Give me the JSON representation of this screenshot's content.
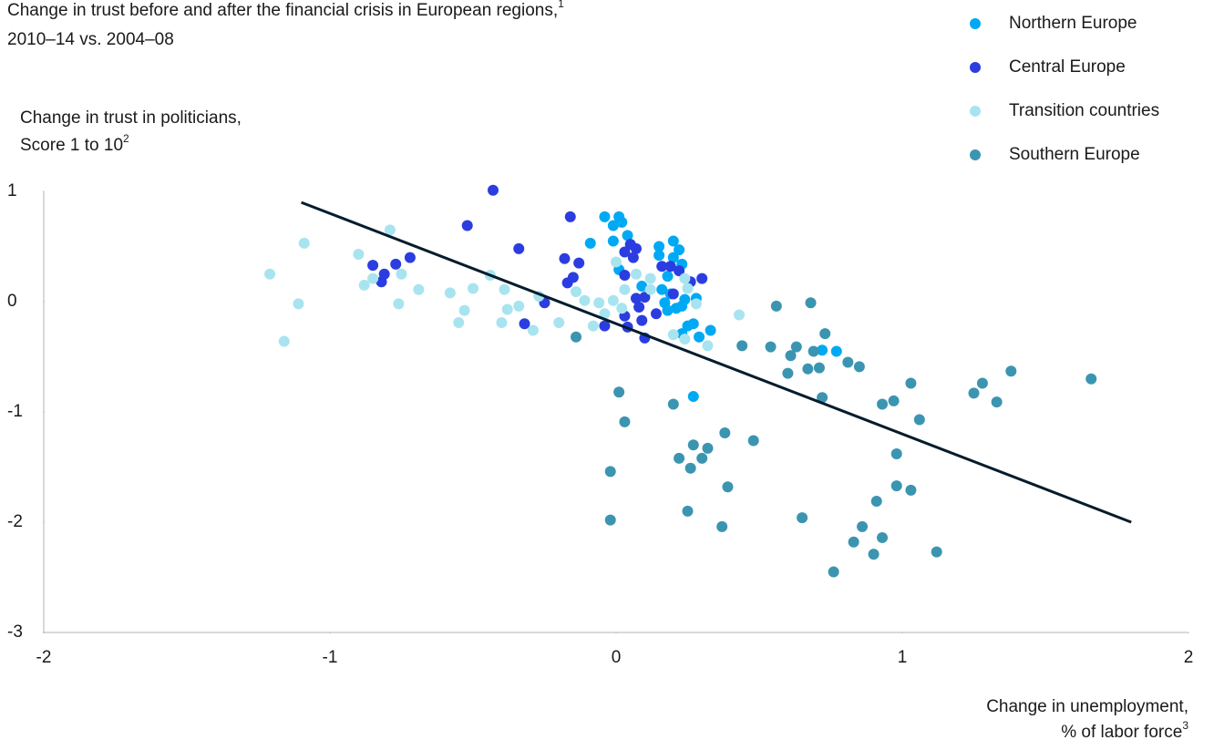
{
  "chart_data": {
    "type": "scatter",
    "title": "Change in trust before and after the financial crisis in European regions,",
    "title_note": "1",
    "subtitle": "2010–14 vs. 2004–08",
    "y_label": [
      "Change in trust in politicians,",
      "Score 1 to 10"
    ],
    "y_label_note": "2",
    "x_label": [
      "Change in unemployment,",
      "% of labor force"
    ],
    "x_label_note": "3",
    "xlim": [
      -2,
      2
    ],
    "xticks": [
      -2,
      -1,
      0,
      1,
      2
    ],
    "ylim": [
      -3,
      1
    ],
    "yticks": [
      -3,
      -2,
      -1,
      0,
      1
    ],
    "legend": "top-right",
    "trend_line": {
      "color": "#051c2c",
      "x": [
        -1.1,
        1.8
      ],
      "y": [
        0.9,
        -2.0
      ]
    },
    "series": [
      {
        "name": "Northern Europe",
        "color": "#00a9f4",
        "x": [
          -0.04,
          0.01,
          0.02,
          -0.01,
          0.04,
          -0.01,
          -0.09,
          0.15,
          0.2,
          0.22,
          0.15,
          0.2,
          0.01,
          0.23,
          0.18,
          0.09,
          0.16,
          0.19,
          0.28,
          0.24,
          0.17,
          0.23,
          0.21,
          0.18,
          0.27,
          0.25,
          0.33,
          0.23,
          0.29,
          0.72,
          0.77,
          0.27
        ],
        "y": [
          0.77,
          0.77,
          0.72,
          0.69,
          0.6,
          0.55,
          0.53,
          0.5,
          0.55,
          0.47,
          0.42,
          0.4,
          0.29,
          0.34,
          0.23,
          0.14,
          0.11,
          0.07,
          0.03,
          0.02,
          -0.01,
          -0.04,
          -0.06,
          -0.08,
          -0.2,
          -0.22,
          -0.26,
          -0.29,
          -0.32,
          -0.44,
          -0.45,
          -0.86
        ]
      },
      {
        "name": "Central Europe",
        "color": "#2b3de0",
        "x": [
          -0.43,
          -0.52,
          -0.16,
          -0.34,
          -0.18,
          -0.13,
          -0.15,
          -0.17,
          -0.72,
          -0.85,
          -0.77,
          -0.81,
          -0.82,
          -0.25,
          -0.32,
          0.05,
          0.07,
          0.03,
          0.06,
          0.03,
          0.16,
          0.19,
          0.22,
          0.3,
          0.26,
          0.1,
          0.07,
          0.08,
          0.03,
          0.14,
          0.09,
          0.04,
          -0.04,
          0.1,
          0.2
        ],
        "y": [
          1.01,
          0.69,
          0.77,
          0.48,
          0.39,
          0.35,
          0.22,
          0.17,
          0.4,
          0.33,
          0.34,
          0.25,
          0.18,
          -0.01,
          -0.2,
          0.52,
          0.48,
          0.45,
          0.4,
          0.24,
          0.32,
          0.32,
          0.28,
          0.21,
          0.18,
          0.04,
          0.03,
          -0.05,
          -0.13,
          -0.11,
          -0.17,
          -0.23,
          -0.22,
          -0.33,
          0.07
        ]
      },
      {
        "name": "Transition countries",
        "color": "#a8e4ef",
        "x": [
          -1.21,
          -1.09,
          -1.11,
          -1.16,
          -0.9,
          -0.79,
          -0.75,
          -0.88,
          -0.85,
          -0.76,
          -0.69,
          -0.58,
          -0.5,
          -0.53,
          -0.55,
          -0.44,
          -0.39,
          -0.38,
          -0.4,
          -0.34,
          -0.29,
          -0.27,
          -0.2,
          -0.14,
          -0.11,
          -0.06,
          -0.08,
          -0.04,
          -0.01,
          0.0,
          0.03,
          0.07,
          0.12,
          0.02,
          0.24,
          0.25,
          0.2,
          0.24,
          0.32,
          0.43,
          0.12,
          0.28
        ],
        "y": [
          0.25,
          0.53,
          -0.02,
          -0.36,
          0.43,
          0.65,
          0.25,
          0.15,
          0.21,
          -0.02,
          0.11,
          0.08,
          0.12,
          -0.08,
          -0.19,
          0.24,
          0.11,
          -0.07,
          -0.19,
          -0.04,
          -0.26,
          0.05,
          -0.19,
          0.09,
          0.01,
          -0.01,
          -0.22,
          -0.11,
          0.01,
          0.36,
          0.11,
          0.25,
          0.21,
          -0.06,
          0.21,
          0.12,
          -0.3,
          -0.34,
          -0.4,
          -0.12,
          0.11,
          -0.02
        ]
      },
      {
        "name": "Southern Europe",
        "color": "#3b95b0",
        "x": [
          -0.14,
          0.56,
          0.68,
          0.44,
          0.54,
          0.63,
          0.61,
          0.69,
          0.73,
          0.6,
          0.67,
          0.71,
          0.81,
          0.85,
          0.72,
          1.03,
          1.28,
          1.25,
          1.38,
          1.33,
          1.66,
          0.93,
          0.97,
          1.06,
          0.01,
          0.03,
          0.2,
          0.38,
          0.48,
          0.27,
          0.32,
          0.3,
          0.22,
          0.26,
          -0.02,
          0.39,
          0.98,
          0.98,
          1.03,
          0.91,
          0.25,
          -0.02,
          0.37,
          0.65,
          0.86,
          0.83,
          0.93,
          0.9,
          1.12,
          0.76
        ],
        "y": [
          -0.32,
          -0.04,
          -0.01,
          -0.4,
          -0.41,
          -0.41,
          -0.49,
          -0.45,
          -0.29,
          -0.65,
          -0.61,
          -0.6,
          -0.55,
          -0.59,
          -0.87,
          -0.74,
          -0.74,
          -0.83,
          -0.63,
          -0.91,
          -0.7,
          -0.93,
          -0.9,
          -1.07,
          -0.82,
          -1.09,
          -0.93,
          -1.19,
          -1.26,
          -1.3,
          -1.33,
          -1.42,
          -1.42,
          -1.51,
          -1.54,
          -1.68,
          -1.38,
          -1.67,
          -1.71,
          -1.81,
          -1.9,
          -1.98,
          -2.04,
          -1.96,
          -2.04,
          -2.18,
          -2.14,
          -2.29,
          -2.27,
          -2.45
        ]
      }
    ]
  }
}
